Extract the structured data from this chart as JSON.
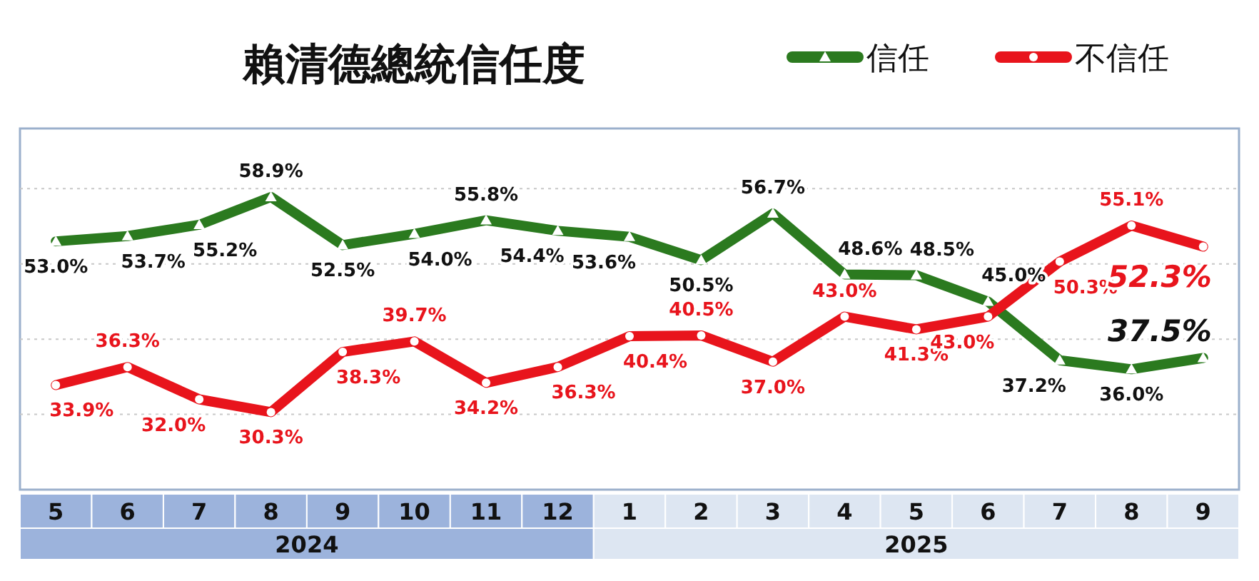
{
  "chart_data": {
    "type": "line",
    "title": "賴清德總統信任度",
    "categories": [
      "5",
      "6",
      "7",
      "8",
      "9",
      "10",
      "11",
      "12",
      "1",
      "2",
      "3",
      "4",
      "5",
      "6",
      "7",
      "8",
      "9"
    ],
    "series": [
      {
        "name": "信任",
        "color": "#2b7a1f",
        "marker": "triangle",
        "values": [
          53.0,
          53.7,
          55.2,
          58.9,
          52.5,
          54.0,
          55.8,
          54.4,
          53.6,
          50.5,
          56.7,
          48.6,
          48.5,
          45.0,
          37.2,
          36.0,
          37.5
        ],
        "value_labels": [
          "53.0%",
          "53.7%",
          "55.2%",
          "58.9%",
          "52.5%",
          "54.0%",
          "55.8%",
          "54.4%",
          "53.6%",
          "50.5%",
          "56.7%",
          "48.6%",
          "48.5%",
          "45.0%",
          "37.2%",
          "36.0%",
          "37.5%"
        ]
      },
      {
        "name": "不信任",
        "color": "#e8141c",
        "marker": "circle",
        "values": [
          33.9,
          36.3,
          32.0,
          30.3,
          38.3,
          39.7,
          34.2,
          36.3,
          40.4,
          40.5,
          37.0,
          43.0,
          41.3,
          43.0,
          50.3,
          55.1,
          52.3
        ],
        "value_labels": [
          "33.9%",
          "36.3%",
          "32.0%",
          "30.3%",
          "38.3%",
          "39.7%",
          "34.2%",
          "36.3%",
          "40.4%",
          "40.5%",
          "37.0%",
          "43.0%",
          "41.3%",
          "43.0%",
          "50.3%",
          "55.1%",
          "52.3%"
        ]
      }
    ],
    "annotations": [
      "2024",
      "2025"
    ],
    "ylim": [
      20,
      68
    ],
    "yticks": [
      {
        "value": 30,
        "label": null
      },
      {
        "value": 40,
        "label": null
      },
      {
        "value": 50,
        "label": null
      },
      {
        "value": 60,
        "label": null
      }
    ],
    "grid": "y",
    "legend": "top right",
    "tick_labels": "x"
  }
}
